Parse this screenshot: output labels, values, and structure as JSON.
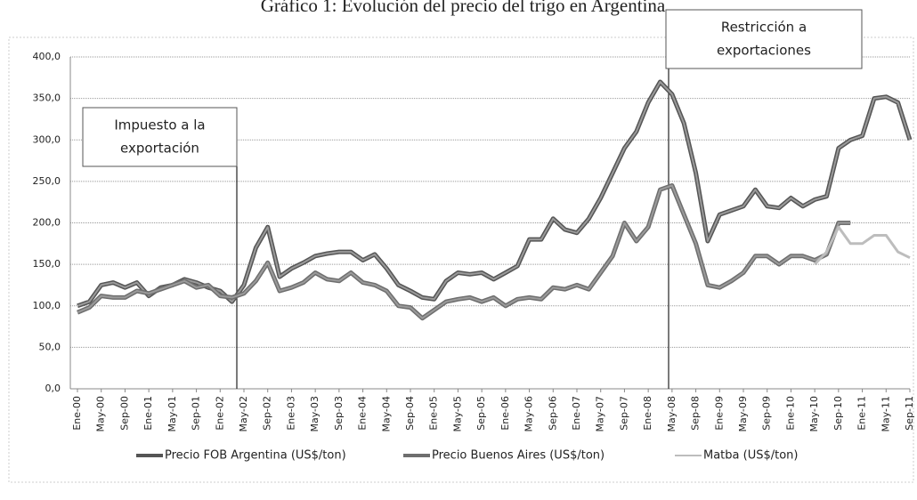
{
  "chart_data": {
    "type": "line",
    "title": "Gráfico 1: Evolución del precio del trigo en Argentina",
    "annotations": [
      {
        "lines": [
          "Impuesto a la",
          "exportación"
        ]
      },
      {
        "lines": [
          "Restricción a",
          "exportaciones"
        ]
      }
    ],
    "categories": [
      "Ene-00",
      null,
      "May-00",
      null,
      "Sep-00",
      null,
      "Ene-01",
      null,
      "May-01",
      null,
      "Sep-01",
      null,
      "Ene-02",
      null,
      "May-02",
      null,
      "Sep-02",
      null,
      "Ene-03",
      null,
      "May-03",
      null,
      "Sep-03",
      null,
      "Ene-04",
      null,
      "May-04",
      null,
      "Sep-04",
      null,
      "Ene-05",
      null,
      "May-05",
      null,
      "Sep-05",
      null,
      "Ene-06",
      null,
      "May-06",
      null,
      "Sep-06",
      null,
      "Ene-07",
      null,
      "May-07",
      null,
      "Sep-07",
      null,
      "Ene-08",
      null,
      "May-08",
      null,
      "Sep-08",
      null,
      "Ene-09",
      null,
      "May-09",
      null,
      "Sep-09",
      null,
      "Ene-10",
      null,
      "May-10",
      null,
      "Sep-10",
      null,
      "Ene-11",
      null,
      "May-11",
      null,
      "Sep-11"
    ],
    "series": [
      {
        "name": "Precio FOB Argentina (US$/ton)",
        "color": "#555555",
        "values": [
          100,
          105,
          125,
          128,
          122,
          128,
          112,
          122,
          125,
          132,
          128,
          122,
          118,
          105,
          125,
          170,
          195,
          135,
          145,
          152,
          160,
          163,
          165,
          165,
          155,
          162,
          145,
          125,
          118,
          110,
          108,
          130,
          140,
          138,
          140,
          132,
          140,
          148,
          180,
          180,
          205,
          192,
          188,
          205,
          230,
          260,
          290,
          310,
          345,
          370,
          355,
          320,
          260,
          178,
          210,
          215,
          220,
          240,
          220,
          218,
          230,
          220,
          228,
          232,
          290,
          300,
          305,
          350,
          352,
          345,
          300
        ]
      },
      {
        "name": "Precio Buenos Aires (US$/ton)",
        "color": "#6e6e6e",
        "values": [
          92,
          98,
          112,
          110,
          110,
          118,
          115,
          120,
          125,
          130,
          122,
          125,
          112,
          110,
          115,
          130,
          152,
          118,
          122,
          128,
          140,
          132,
          130,
          140,
          128,
          125,
          118,
          100,
          98,
          85,
          95,
          105,
          108,
          110,
          105,
          110,
          100,
          108,
          110,
          108,
          122,
          120,
          125,
          120,
          140,
          160,
          200,
          178,
          195,
          240,
          245,
          210,
          175,
          125,
          122,
          130,
          140,
          160,
          160,
          150,
          160,
          160,
          155,
          162,
          200,
          200,
          null,
          null,
          null,
          null,
          null
        ]
      },
      {
        "name": "Matba (US$/ton)",
        "color": "#bdbdbd",
        "values": [
          null,
          null,
          null,
          null,
          null,
          null,
          null,
          null,
          null,
          null,
          null,
          null,
          null,
          null,
          null,
          null,
          null,
          null,
          null,
          null,
          null,
          null,
          null,
          null,
          null,
          null,
          null,
          null,
          null,
          null,
          null,
          null,
          null,
          null,
          null,
          null,
          null,
          null,
          null,
          null,
          null,
          null,
          null,
          null,
          null,
          null,
          null,
          null,
          null,
          null,
          null,
          null,
          null,
          null,
          null,
          null,
          null,
          null,
          null,
          null,
          null,
          null,
          150,
          165,
          195,
          175,
          175,
          185,
          185,
          165,
          158
        ]
      }
    ],
    "ylim": [
      0,
      400
    ],
    "yticks": [
      {
        "value": 0,
        "label": "0,0"
      },
      {
        "value": 50,
        "label": "50,0"
      },
      {
        "value": 100,
        "label": "100,0"
      },
      {
        "value": 150,
        "label": "150,0"
      },
      {
        "value": 200,
        "label": "200,0"
      },
      {
        "value": 250,
        "label": "250,0"
      },
      {
        "value": 300,
        "label": "300,0"
      },
      {
        "value": 350,
        "label": "350,0"
      },
      {
        "value": 400,
        "label": "400,0"
      }
    ],
    "grid": true,
    "legend": "bottom"
  }
}
